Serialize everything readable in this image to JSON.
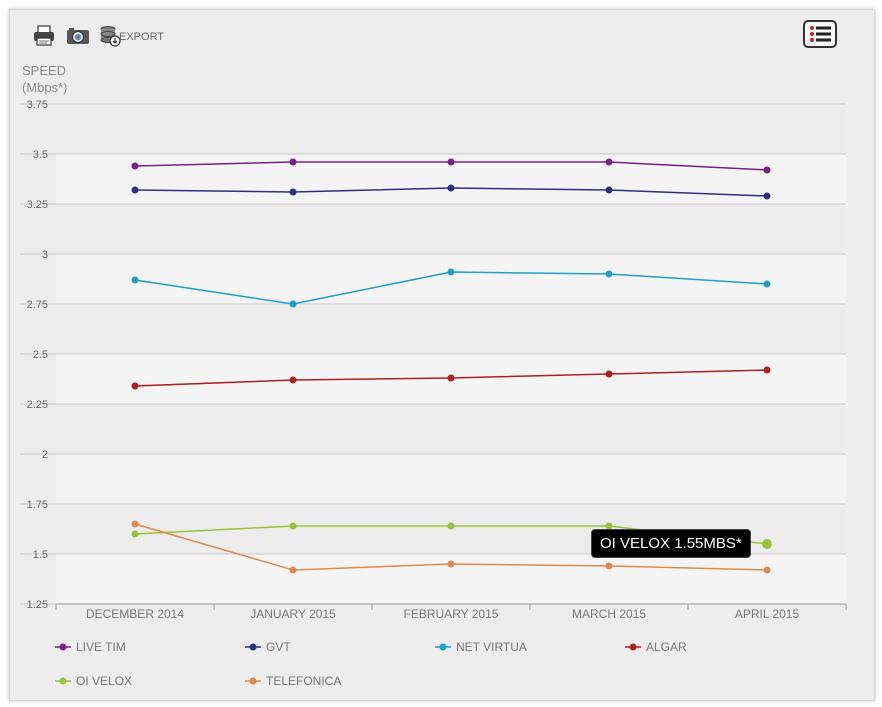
{
  "toolbar": {
    "print_icon": "printer-icon",
    "camera_icon": "camera-icon",
    "export_icon": "database-download-icon",
    "export_label": "EXPORT",
    "menu_icon": "list-menu-icon"
  },
  "chart_data": {
    "type": "line",
    "ylabel_line1": "SPEED",
    "ylabel_line2": "(Mbps*)",
    "ylim": [
      1.25,
      3.75
    ],
    "yticks": [
      "3.75",
      "3.5",
      "3.25",
      "3",
      "2.75",
      "2.5",
      "2.25",
      "2",
      "1.75",
      "1.5",
      "1.25"
    ],
    "categories": [
      "DECEMBER 2014",
      "JANUARY 2015",
      "FEBRUARY 2015",
      "MARCH 2015",
      "APRIL 2015"
    ],
    "grid": true,
    "legend_position": "bottom",
    "series": [
      {
        "name": "LIVE TIM",
        "color": "#7b1f8a",
        "values": [
          3.44,
          3.46,
          3.46,
          3.46,
          3.42
        ]
      },
      {
        "name": "GVT",
        "color": "#2e2f82",
        "values": [
          3.32,
          3.31,
          3.33,
          3.32,
          3.29
        ]
      },
      {
        "name": "NET VIRTUA",
        "color": "#1f9fc9",
        "values": [
          2.87,
          2.75,
          2.91,
          2.9,
          2.85
        ]
      },
      {
        "name": "ALGAR",
        "color": "#b11e1e",
        "values": [
          2.34,
          2.37,
          2.38,
          2.4,
          2.42
        ]
      },
      {
        "name": "OI VELOX",
        "color": "#9bc13a",
        "values": [
          1.6,
          1.64,
          1.64,
          1.64,
          1.55
        ]
      },
      {
        "name": "TELEFONICA",
        "color": "#dd8a4d",
        "values": [
          1.65,
          1.42,
          1.45,
          1.44,
          1.42
        ]
      }
    ],
    "tooltip": "OI VELOX 1.55MBS*"
  }
}
